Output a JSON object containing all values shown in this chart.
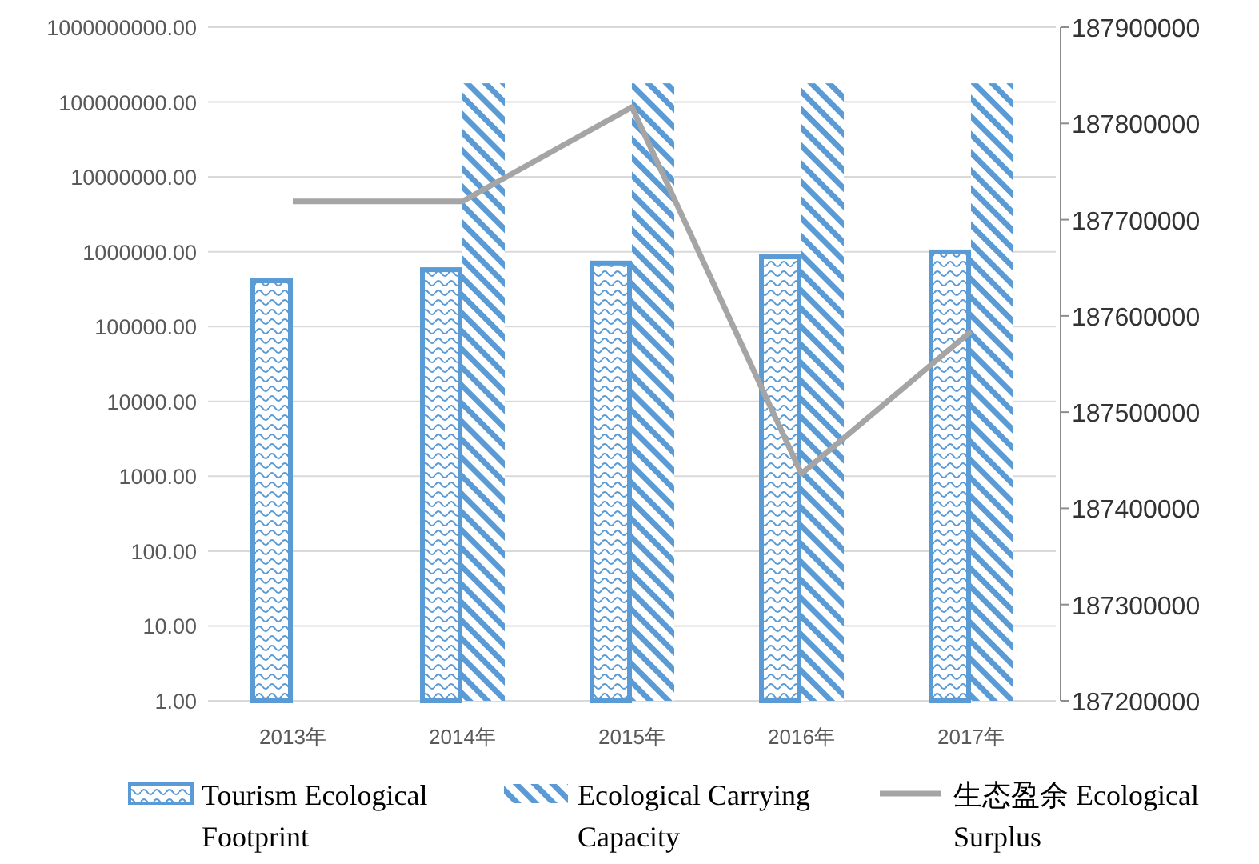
{
  "chart_data": {
    "type": "bar",
    "categories": [
      "2013年",
      "2014年",
      "2015年",
      "2016年",
      "2017年"
    ],
    "series": [
      {
        "name": "Tourism Ecological Footprint",
        "color": "#5b9bd5",
        "values": [
          440000,
          620000,
          760000,
          920000,
          1070000
        ]
      },
      {
        "name": "Ecological Carrying Capacity",
        "color": "#5b9bd5",
        "values": [
          null,
          178000000,
          178000000,
          178000000,
          178000000
        ]
      },
      {
        "name": "生态盈余 Ecological Surplus",
        "type": "line",
        "axis": "y2",
        "color": "#a5a5a5",
        "values": [
          187719000,
          187719000,
          187817000,
          187436000,
          187584000
        ]
      }
    ],
    "log": true,
    "ylim": [
      1,
      1000000000
    ],
    "yticks": [
      {
        "value": 1,
        "label": "1.00"
      },
      {
        "value": 10,
        "label": "10.00"
      },
      {
        "value": 100,
        "label": "100.00"
      },
      {
        "value": 1000,
        "label": "1000.00"
      },
      {
        "value": 10000,
        "label": "10000.00"
      },
      {
        "value": 100000,
        "label": "100000.00"
      },
      {
        "value": 1000000,
        "label": "1000000.00"
      },
      {
        "value": 10000000,
        "label": "10000000.00"
      },
      {
        "value": 100000000,
        "label": "100000000.00"
      },
      {
        "value": 1000000000,
        "label": "1000000000.00"
      }
    ],
    "y2lim": [
      187200000,
      187900000
    ],
    "y2ticks": [
      187200000,
      187300000,
      187400000,
      187500000,
      187600000,
      187700000,
      187800000,
      187900000
    ],
    "grid": "y",
    "legend": "bottom"
  }
}
